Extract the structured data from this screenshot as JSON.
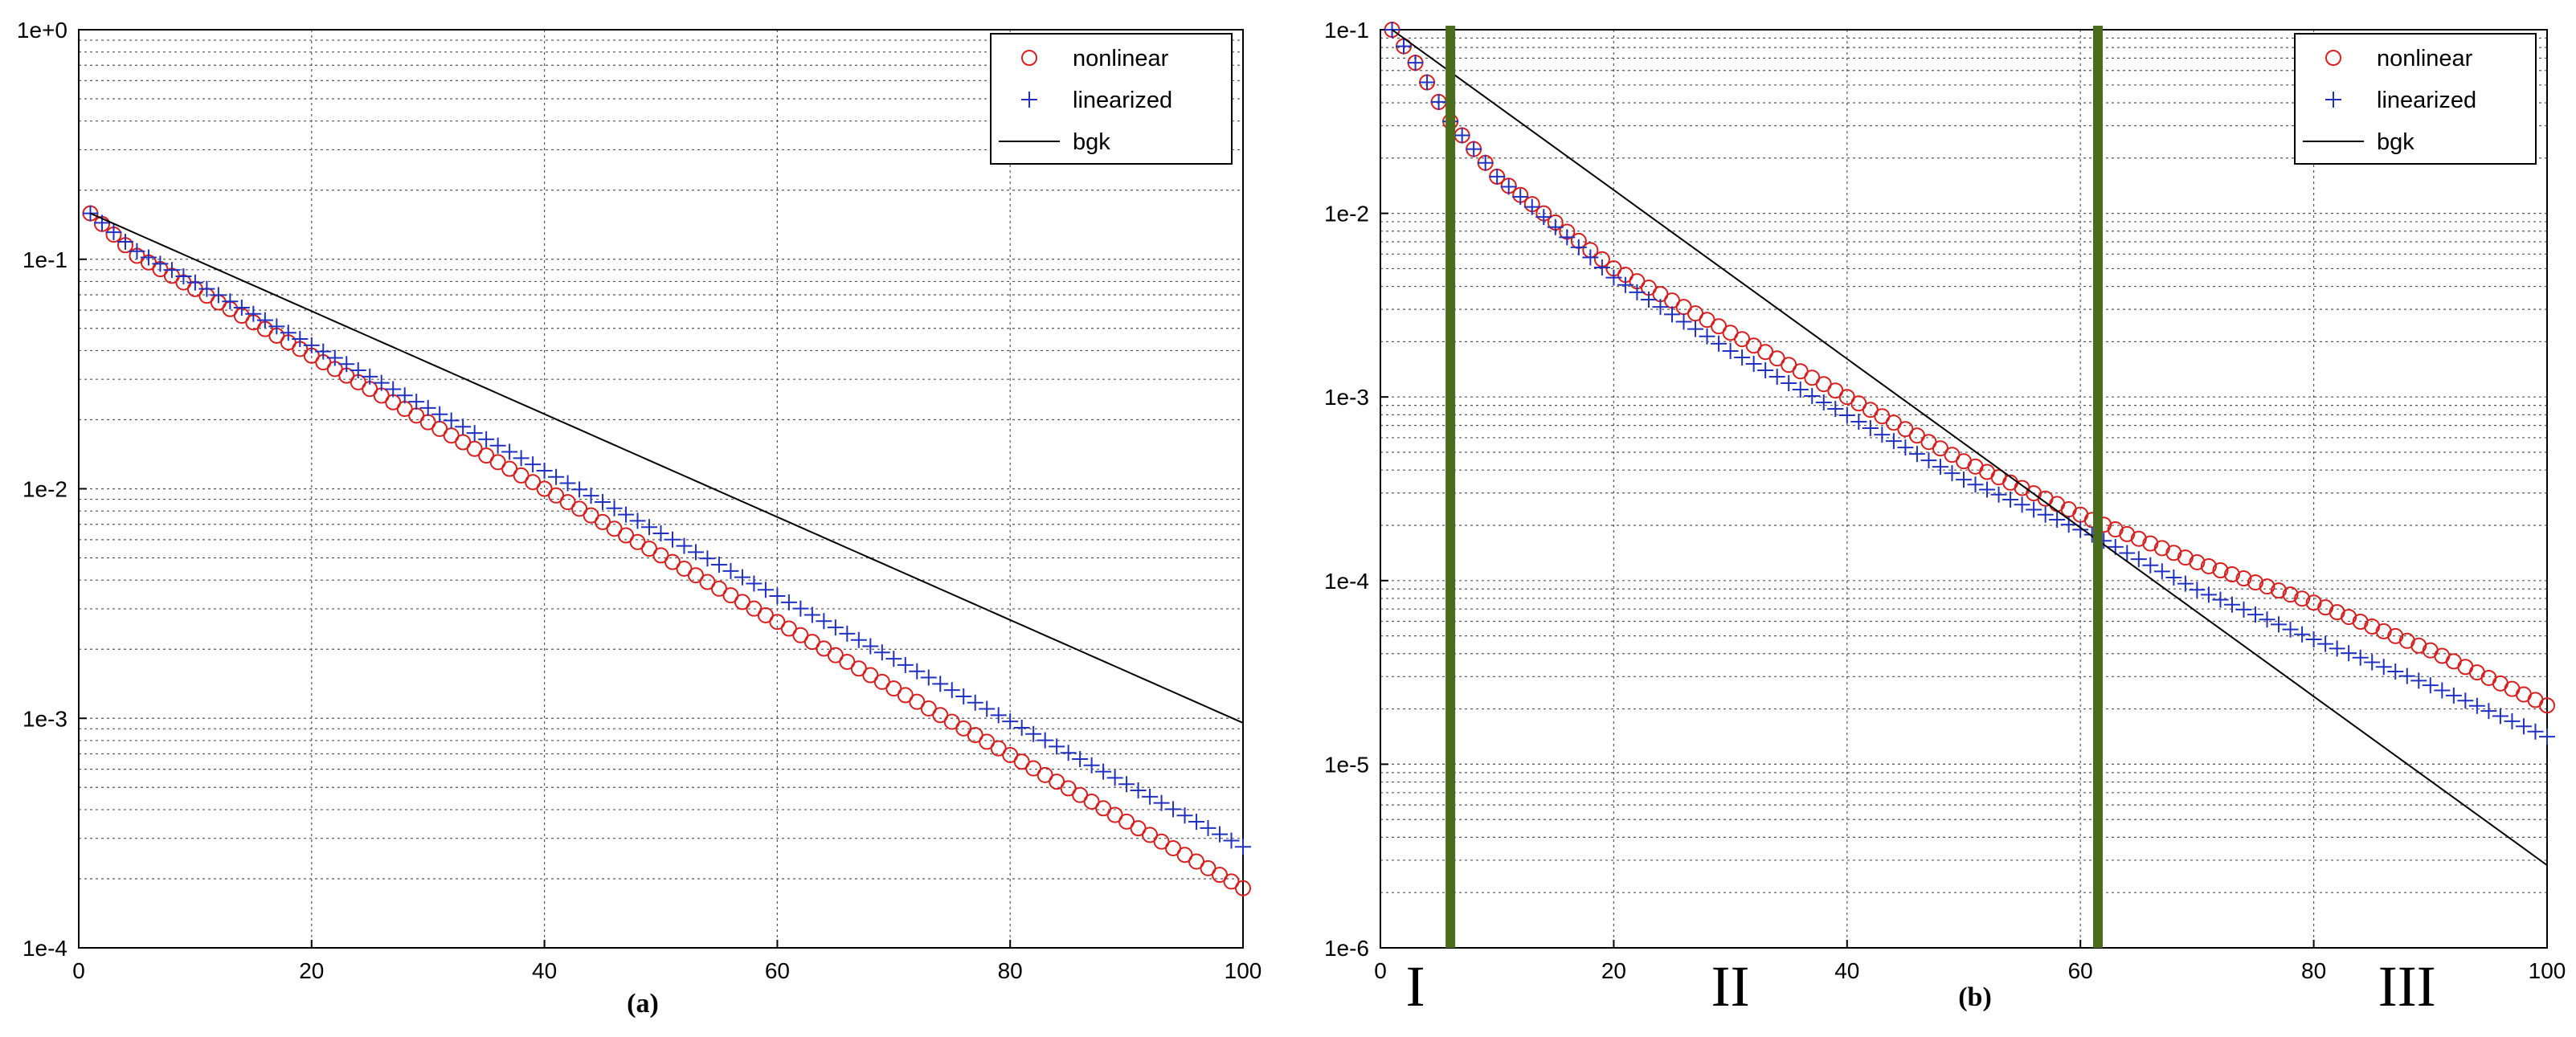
{
  "chart_data": [
    {
      "id": "a",
      "type": "scatter",
      "label": "(a)",
      "yscale": "log",
      "xlim": [
        0,
        100
      ],
      "ylim": [
        0.0001,
        1
      ],
      "xticks": [
        0,
        20,
        40,
        60,
        80,
        100
      ],
      "xtick_labels": [
        "0",
        "20",
        "40",
        "60",
        "80",
        "100"
      ],
      "yticks": [
        0.0001,
        0.001,
        0.01,
        0.1,
        1
      ],
      "ytick_labels": [
        "1e-4",
        "1e-3",
        "1e-2",
        "1e-1",
        "1e+0"
      ],
      "grid": true,
      "legend_position": "top-right",
      "series": [
        {
          "name": "nonlinear",
          "marker": "circle",
          "color": "#d62020",
          "x_start": 1,
          "x_end": 100,
          "x_step": 1,
          "log10_anchors": [
            [
              1,
              -0.8
            ],
            [
              5,
              -0.985
            ],
            [
              100,
              -3.74
            ]
          ]
        },
        {
          "name": "linearized",
          "marker": "plus",
          "color": "#2030c0",
          "x_start": 1,
          "x_end": 100,
          "x_step": 1,
          "log10_anchors": [
            [
              1,
              -0.8
            ],
            [
              5,
              -0.965
            ],
            [
              100,
              -3.56
            ]
          ]
        },
        {
          "name": "bgk",
          "marker": "line",
          "color": "#000000",
          "x_start": 1,
          "x_end": 100,
          "x_step": 1,
          "log10_anchors": [
            [
              1,
              -0.8
            ],
            [
              100,
              -3.02
            ]
          ]
        }
      ]
    },
    {
      "id": "b",
      "type": "scatter",
      "label": "(b)",
      "yscale": "log",
      "xlim": [
        0,
        100
      ],
      "ylim": [
        1e-06,
        0.1
      ],
      "xticks": [
        0,
        20,
        40,
        60,
        80,
        100
      ],
      "xtick_labels": [
        "0",
        "20",
        "40",
        "60",
        "80",
        "100"
      ],
      "yticks": [
        1e-06,
        1e-05,
        0.0001,
        0.001,
        0.01,
        0.1
      ],
      "ytick_labels": [
        "1e-6",
        "1e-5",
        "1e-4",
        "1e-3",
        "1e-2",
        "1e-1"
      ],
      "grid": true,
      "legend_position": "top-right",
      "regions": {
        "boundaries_x": [
          6,
          61.5
        ],
        "boundary_color": "#4a6a1c",
        "labels": [
          {
            "text": "I",
            "x": 3
          },
          {
            "text": "II",
            "x": 30
          },
          {
            "text": "III",
            "x": 88
          }
        ]
      },
      "series": [
        {
          "name": "nonlinear",
          "marker": "circle",
          "color": "#d62020",
          "x_start": 1,
          "x_end": 100,
          "x_step": 1,
          "log10_anchors": [
            [
              1,
              -1.0
            ],
            [
              3,
              -1.18
            ],
            [
              6,
              -1.5
            ],
            [
              10,
              -1.8
            ],
            [
              20,
              -2.3
            ],
            [
              30,
              -2.65
            ],
            [
              40,
              -3.0
            ],
            [
              50,
              -3.35
            ],
            [
              61,
              -3.67
            ],
            [
              70,
              -3.9
            ],
            [
              80,
              -4.12
            ],
            [
              90,
              -4.38
            ],
            [
              100,
              -4.68
            ]
          ]
        },
        {
          "name": "linearized",
          "marker": "plus",
          "color": "#2030c0",
          "x_start": 1,
          "x_end": 100,
          "x_step": 1,
          "log10_anchors": [
            [
              1,
              -1.0
            ],
            [
              3,
              -1.18
            ],
            [
              6,
              -1.5
            ],
            [
              10,
              -1.8
            ],
            [
              20,
              -2.35
            ],
            [
              30,
              -2.75
            ],
            [
              40,
              -3.1
            ],
            [
              50,
              -3.45
            ],
            [
              61,
              -3.75
            ],
            [
              70,
              -4.05
            ],
            [
              80,
              -4.32
            ],
            [
              90,
              -4.57
            ],
            [
              100,
              -4.85
            ]
          ]
        },
        {
          "name": "bgk",
          "marker": "line",
          "color": "#000000",
          "x_start": 1,
          "x_end": 100,
          "x_step": 1,
          "log10_anchors": [
            [
              1,
              -1.0
            ],
            [
              100,
              -5.55
            ]
          ]
        }
      ]
    }
  ]
}
